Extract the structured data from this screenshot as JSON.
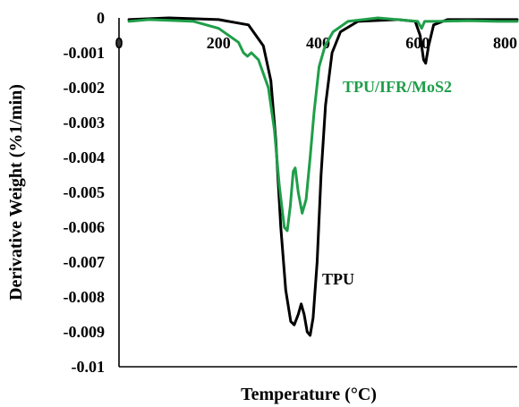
{
  "chart_data": {
    "type": "line",
    "xlabel": "Temperature (°C)",
    "ylabel": "Derivative Weight (%1/min)",
    "xlim": [
      0,
      800
    ],
    "ylim": [
      -0.01,
      0
    ],
    "x_ticks": [
      "0",
      "200",
      "400",
      "600",
      "800"
    ],
    "y_ticks": [
      "0",
      "-0.001",
      "-0.002",
      "-0.003",
      "-0.004",
      "-0.005",
      "-0.006",
      "-0.007",
      "-0.008",
      "-0.009",
      "-0.01"
    ],
    "grid": false,
    "series": [
      {
        "name": "TPU",
        "color": "#000000",
        "points": [
          [
            20,
            -5e-05
          ],
          [
            100,
            -0.0
          ],
          [
            200,
            -5e-05
          ],
          [
            260,
            -0.0002
          ],
          [
            290,
            -0.0008
          ],
          [
            305,
            -0.0018
          ],
          [
            315,
            -0.0035
          ],
          [
            325,
            -0.006
          ],
          [
            335,
            -0.0078
          ],
          [
            345,
            -0.0087
          ],
          [
            352,
            -0.0088
          ],
          [
            360,
            -0.0085
          ],
          [
            366,
            -0.0082
          ],
          [
            372,
            -0.0085
          ],
          [
            378,
            -0.009
          ],
          [
            384,
            -0.0091
          ],
          [
            390,
            -0.0086
          ],
          [
            398,
            -0.007
          ],
          [
            406,
            -0.0045
          ],
          [
            415,
            -0.0025
          ],
          [
            428,
            -0.001
          ],
          [
            445,
            -0.0004
          ],
          [
            480,
            -0.0001
          ],
          [
            560,
            -5e-05
          ],
          [
            595,
            -0.0001
          ],
          [
            605,
            -0.0005
          ],
          [
            612,
            -0.0012
          ],
          [
            616,
            -0.0013
          ],
          [
            622,
            -0.0008
          ],
          [
            632,
            -0.0002
          ],
          [
            660,
            -5e-05
          ],
          [
            800,
            -5e-05
          ]
        ]
      },
      {
        "name": "TPU/IFR/MoS2",
        "color": "#1f9e49",
        "points": [
          [
            20,
            -0.0001
          ],
          [
            60,
            -5e-05
          ],
          [
            150,
            -0.0001
          ],
          [
            200,
            -0.0003
          ],
          [
            220,
            -0.0005
          ],
          [
            240,
            -0.0007
          ],
          [
            250,
            -0.001
          ],
          [
            258,
            -0.0011
          ],
          [
            266,
            -0.001
          ],
          [
            280,
            -0.0012
          ],
          [
            300,
            -0.002
          ],
          [
            312,
            -0.0032
          ],
          [
            322,
            -0.0048
          ],
          [
            332,
            -0.006
          ],
          [
            338,
            -0.0061
          ],
          [
            344,
            -0.0054
          ],
          [
            350,
            -0.0044
          ],
          [
            354,
            -0.0043
          ],
          [
            360,
            -0.005
          ],
          [
            368,
            -0.0056
          ],
          [
            376,
            -0.0052
          ],
          [
            384,
            -0.004
          ],
          [
            392,
            -0.0027
          ],
          [
            402,
            -0.0014
          ],
          [
            414,
            -0.0008
          ],
          [
            430,
            -0.0004
          ],
          [
            460,
            -0.0001
          ],
          [
            520,
            0.0
          ],
          [
            600,
            -0.0001
          ],
          [
            608,
            -0.0003
          ],
          [
            614,
            -0.0001
          ],
          [
            640,
            -0.0001
          ],
          [
            700,
            -8e-05
          ],
          [
            760,
            -0.0001
          ],
          [
            800,
            -0.0001
          ]
        ]
      }
    ],
    "annotations": [
      "TPU",
      "TPU/IFR/MoS2"
    ]
  }
}
